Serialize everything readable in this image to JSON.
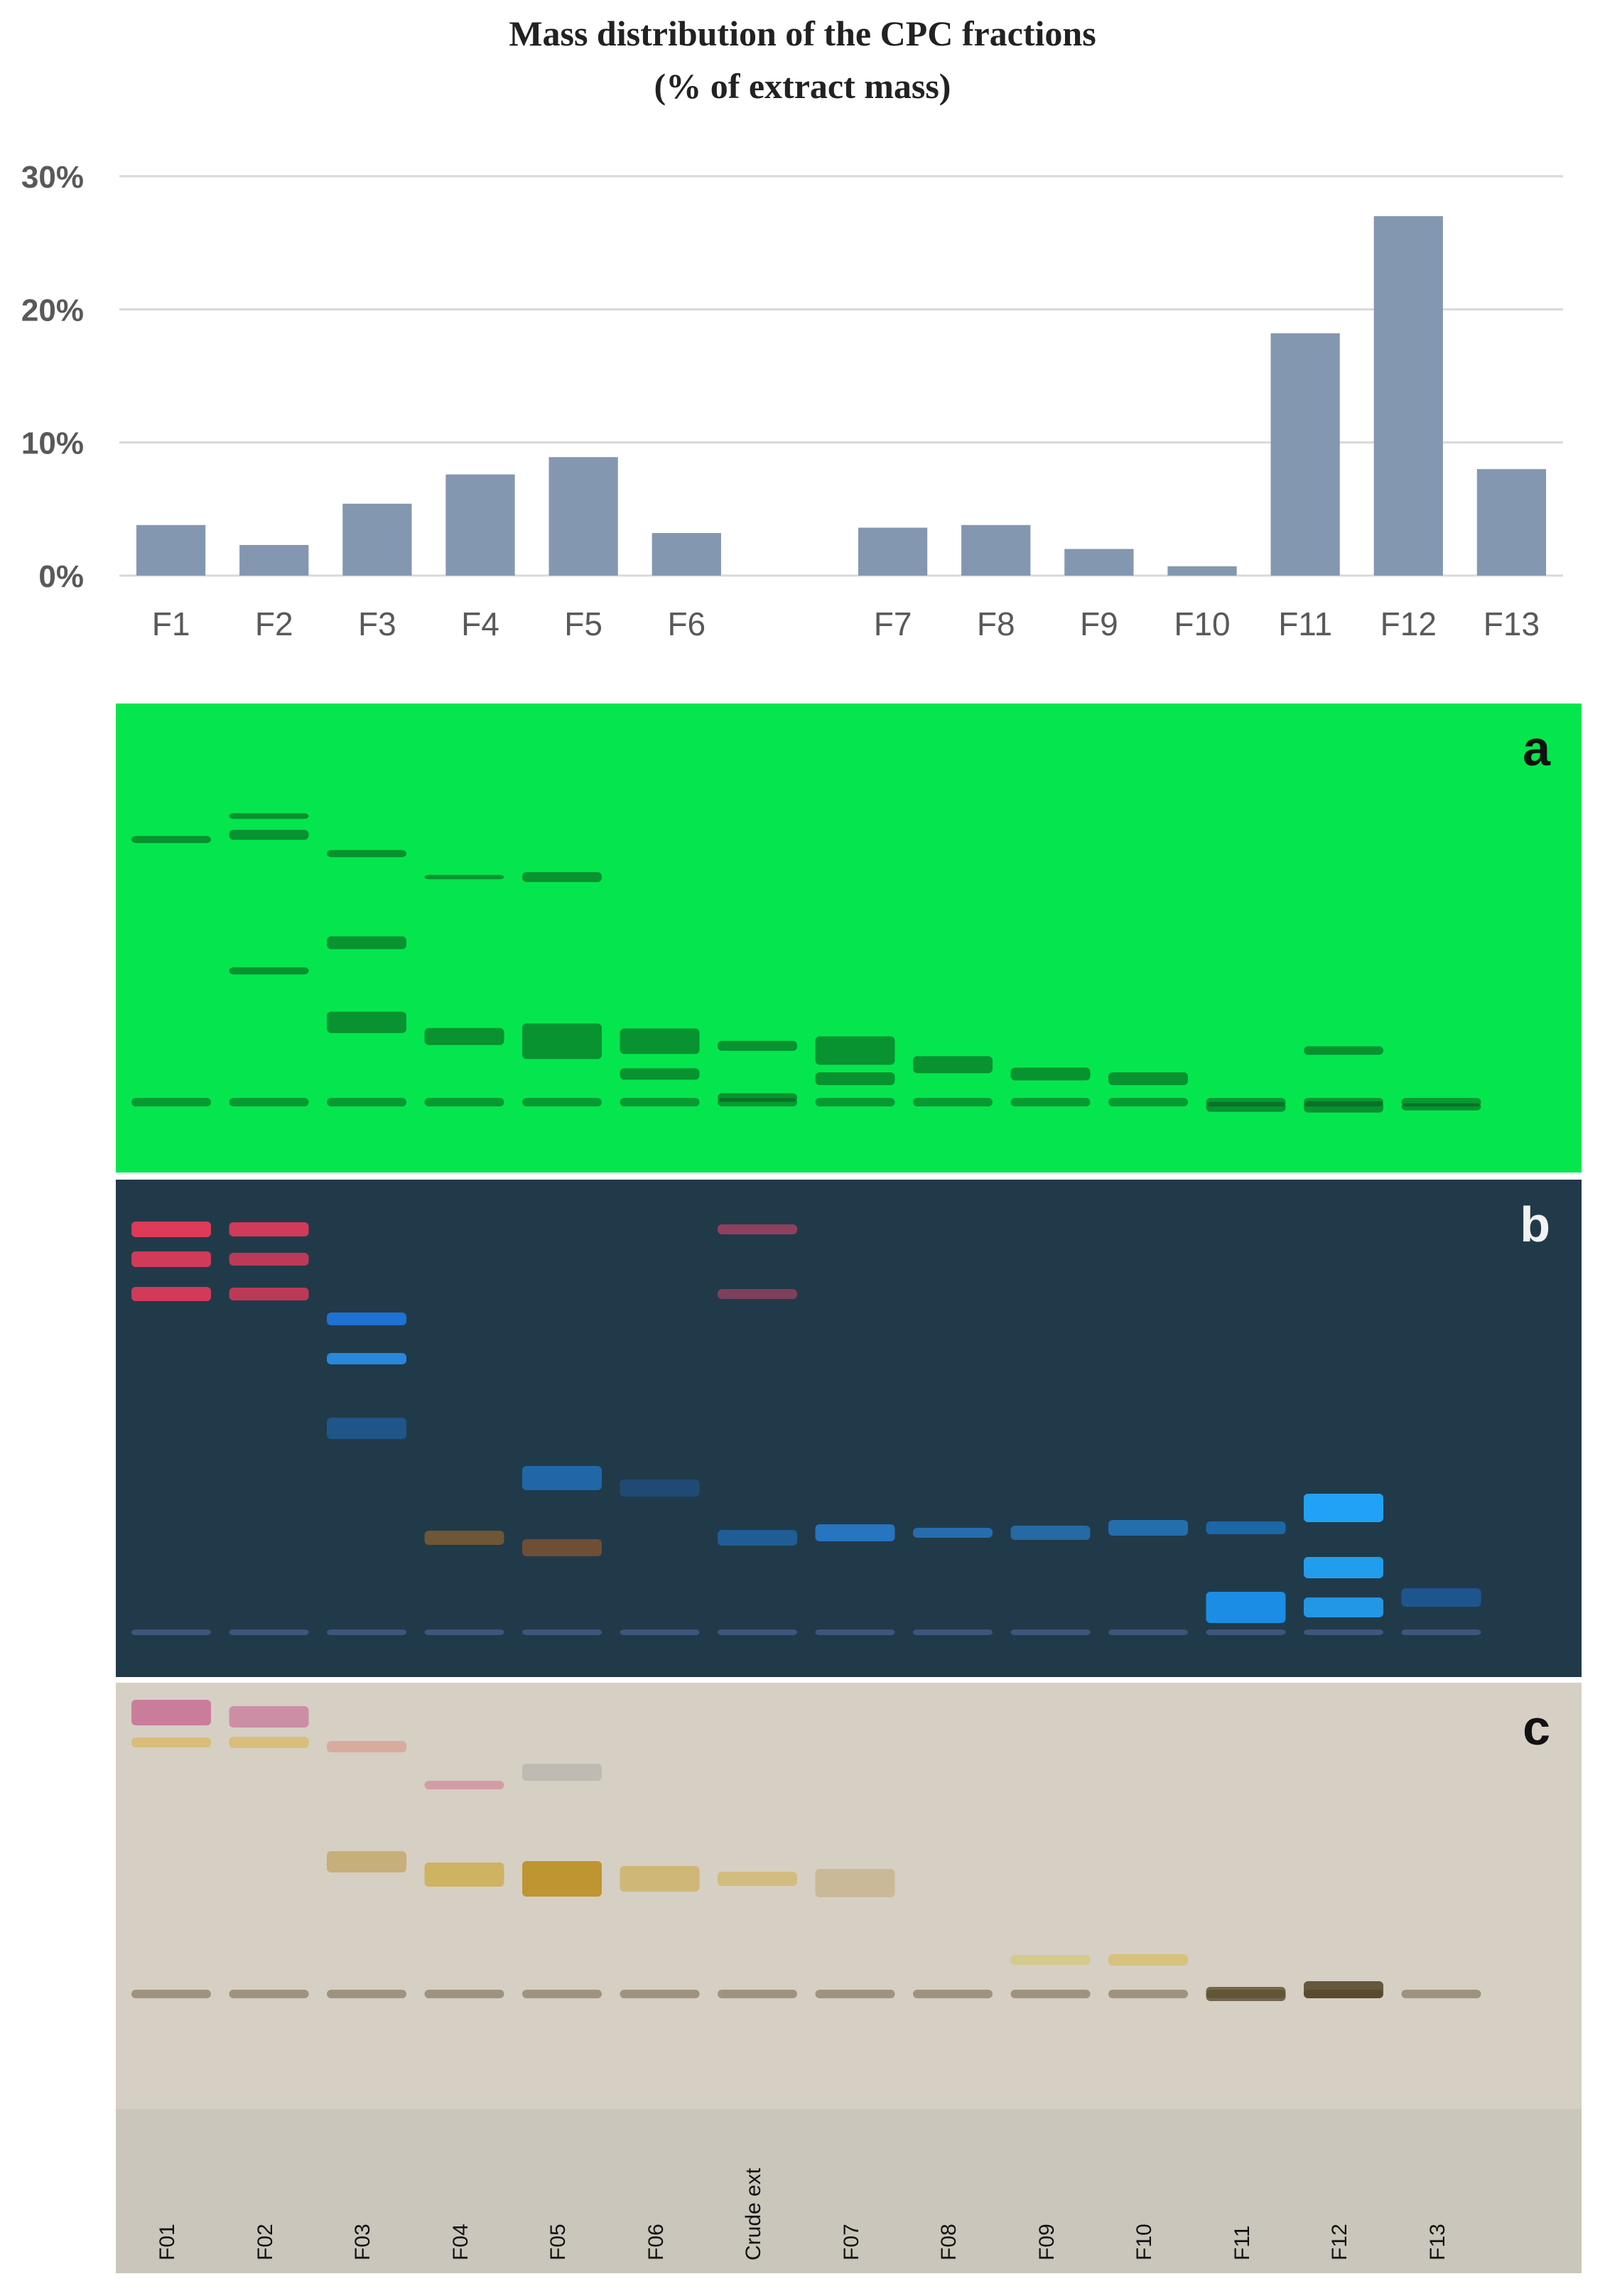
{
  "title_line1": "Mass distribution of the CPC fractions",
  "title_line2": "(% of extract mass)",
  "chart_data": {
    "type": "bar",
    "title": "Mass distribution of the CPC fractions (% of extract mass)",
    "categories": [
      "F1",
      "F2",
      "F3",
      "F4",
      "F5",
      "F6",
      "",
      "F7",
      "F8",
      "F9",
      "F10",
      "F11",
      "F12",
      "F13"
    ],
    "values": [
      3.8,
      2.3,
      5.4,
      7.6,
      8.9,
      3.2,
      null,
      3.6,
      3.8,
      2.0,
      0.7,
      18.2,
      27.0,
      8.0
    ],
    "ylim": [
      0,
      30
    ],
    "yticks": [
      "0%",
      "10%",
      "20%",
      "30%"
    ],
    "ytick_values": [
      0,
      10,
      20,
      30
    ],
    "grid": true,
    "bar_color": "#8497b0",
    "grid_color": "#d9d9d9"
  },
  "plates": [
    {
      "id": "a",
      "letter": "a",
      "background": "#05e64e"
    },
    {
      "id": "b",
      "letter": "b",
      "background": "#213a4a"
    },
    {
      "id": "c",
      "letter": "c",
      "background": "#d6cfc4"
    }
  ],
  "lane_labels": [
    "F01",
    "F02",
    "F03",
    "F04",
    "F05",
    "F06",
    "Crude ext",
    "F07",
    "F08",
    "F09",
    "F10",
    "F11",
    "F12",
    "F13"
  ]
}
